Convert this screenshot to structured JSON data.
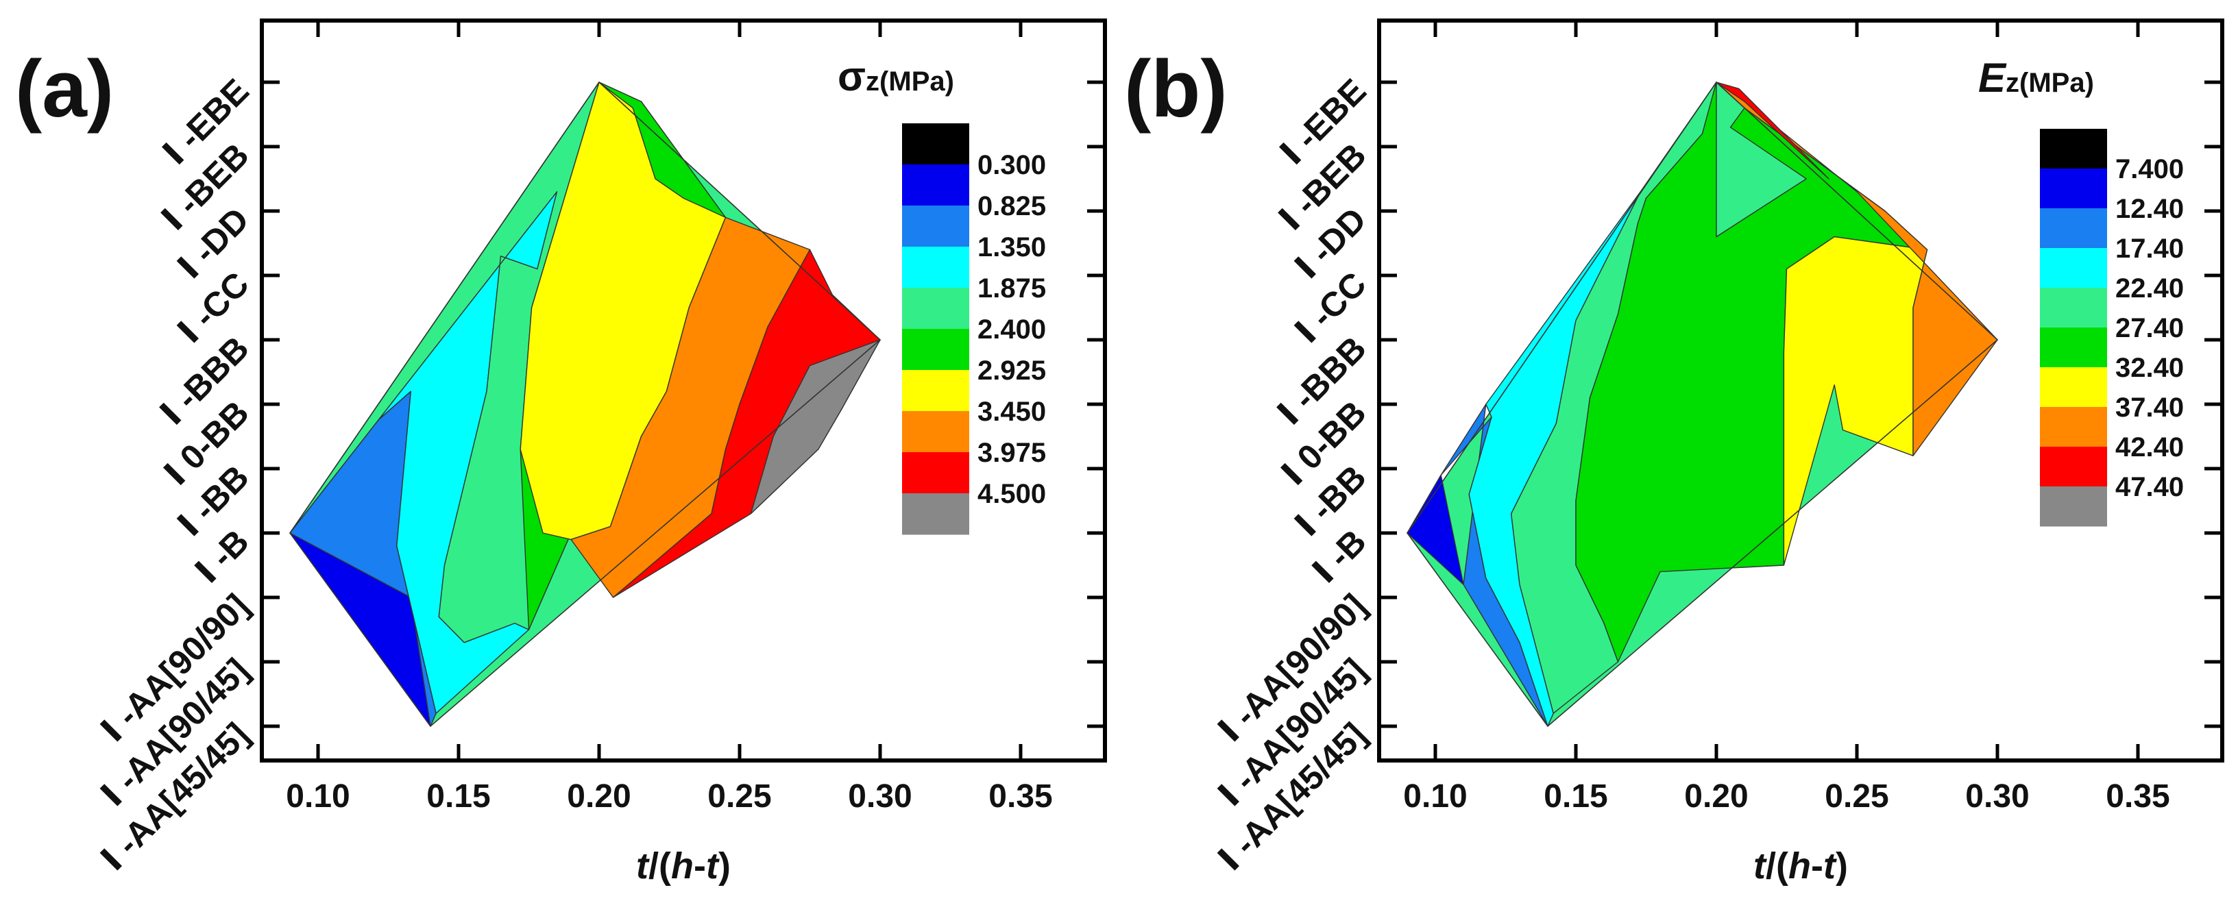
{
  "chart_data": [
    {
      "panel_label": "(a)",
      "type": "heatmap",
      "subtype": "filled-contour",
      "xlabel_parts": [
        "t",
        "/(",
        "h",
        "-",
        "t",
        ")"
      ],
      "ylabel": "",
      "xlim": [
        0.08,
        0.38
      ],
      "x_ticks": [
        "0.10",
        "0.15",
        "0.20",
        "0.25",
        "0.30",
        "0.35"
      ],
      "x_tick_values": [
        0.1,
        0.15,
        0.2,
        0.25,
        0.3,
        0.35
      ],
      "y_categories": [
        "Ⅰ-AA[45/45]",
        "Ⅰ-AA[90/45]",
        "Ⅰ-AA[90/90]",
        "Ⅰ-B",
        "Ⅰ-BB",
        "Ⅰ0-BB",
        "Ⅰ-BBB",
        "Ⅰ-CC",
        "Ⅰ-DD",
        "Ⅰ-BEB",
        "Ⅰ-EBE"
      ],
      "y_tick_texts": [
        "Ⅰ -AA[45/45]",
        "Ⅰ -AA[90/45]",
        "Ⅰ -AA[90/90]",
        "Ⅰ -B",
        "Ⅰ -BB",
        "Ⅰ 0-BB",
        "Ⅰ -BBB",
        "Ⅰ -CC",
        "Ⅰ -DD",
        "Ⅰ -BEB",
        "Ⅰ -EBE"
      ],
      "colorbar_title": {
        "symbol": "σ",
        "subscript": "z",
        "unit": "(MPa)"
      },
      "colorbar_levels": [
        "0.300",
        "0.825",
        "1.350",
        "1.875",
        "2.400",
        "2.925",
        "3.450",
        "3.975",
        "4.500"
      ],
      "band_colors": [
        "#000000",
        "#0000ee",
        "#1a7ff0",
        "#00ffff",
        "#33ee88",
        "#00dd00",
        "#ffff00",
        "#ff8800",
        "#ff0000",
        "#888888"
      ],
      "data_domain": [
        [
          0.14,
          0
        ],
        [
          0.09,
          3
        ],
        [
          0.2,
          10
        ],
        [
          0.3,
          6
        ],
        [
          0.14,
          0
        ]
      ],
      "contour_regions": [
        {
          "level_index": 1,
          "polygon": [
            [
              0.09,
              3
            ],
            [
              0.133,
              2
            ],
            [
              0.14,
              0
            ],
            [
              0.09,
              3
            ]
          ]
        },
        {
          "level_index": 2,
          "polygon": [
            [
              0.09,
              3
            ],
            [
              0.12,
              4.7
            ],
            [
              0.133,
              5.2
            ],
            [
              0.128,
              2.8
            ],
            [
              0.142,
              0.2
            ],
            [
              0.14,
              0
            ],
            [
              0.133,
              2
            ],
            [
              0.09,
              3
            ]
          ]
        },
        {
          "level_index": 3,
          "polygon": [
            [
              0.09,
              3
            ],
            [
              0.185,
              8.3
            ],
            [
              0.178,
              7.1
            ],
            [
              0.165,
              7.3
            ],
            [
              0.16,
              5.2
            ],
            [
              0.145,
              2.5
            ],
            [
              0.143,
              1.7
            ],
            [
              0.152,
              1.3
            ],
            [
              0.17,
              1.6
            ],
            [
              0.175,
              1.5
            ],
            [
              0.142,
              0.2
            ],
            [
              0.128,
              2.8
            ],
            [
              0.133,
              5.2
            ],
            [
              0.12,
              4.7
            ],
            [
              0.09,
              3
            ]
          ]
        },
        {
          "level_index": 4,
          "polygon": [
            [
              0.09,
              3
            ],
            [
              0.2,
              10
            ],
            [
              0.215,
              9.7
            ],
            [
              0.245,
              7.9
            ],
            [
              0.225,
              8.2
            ],
            [
              0.215,
              6.2
            ],
            [
              0.208,
              5.6
            ],
            [
              0.198,
              4.7
            ],
            [
              0.19,
              3
            ],
            [
              0.175,
              1.5
            ],
            [
              0.17,
              1.6
            ],
            [
              0.152,
              1.3
            ],
            [
              0.143,
              1.7
            ],
            [
              0.145,
              2.5
            ],
            [
              0.16,
              5.2
            ],
            [
              0.165,
              7.3
            ],
            [
              0.178,
              7.1
            ],
            [
              0.185,
              8.3
            ],
            [
              0.09,
              3
            ]
          ]
        },
        {
          "level_index": 5,
          "polygon": [
            [
              0.175,
              1.5
            ],
            [
              0.19,
              3
            ],
            [
              0.198,
              4.7
            ],
            [
              0.208,
              5.6
            ],
            [
              0.215,
              6.2
            ],
            [
              0.225,
              8.2
            ],
            [
              0.245,
              7.9
            ],
            [
              0.215,
              9.7
            ],
            [
              0.2,
              10
            ],
            [
              0.176,
              6.5
            ],
            [
              0.172,
              4.3
            ],
            [
              0.175,
              1.5
            ]
          ]
        },
        {
          "level_index": 6,
          "polygon": [
            [
              0.176,
              6.5
            ],
            [
              0.2,
              10
            ],
            [
              0.212,
              9.6
            ],
            [
              0.22,
              8.5
            ],
            [
              0.23,
              8.2
            ],
            [
              0.245,
              7.9
            ],
            [
              0.232,
              6.5
            ],
            [
              0.224,
              5.2
            ],
            [
              0.215,
              4.5
            ],
            [
              0.204,
              3.1
            ],
            [
              0.19,
              2.9
            ],
            [
              0.18,
              3
            ],
            [
              0.172,
              4.3
            ],
            [
              0.176,
              6.5
            ]
          ]
        },
        {
          "level_index": 7,
          "polygon": [
            [
              0.19,
              2.9
            ],
            [
              0.204,
              3.1
            ],
            [
              0.215,
              4.5
            ],
            [
              0.224,
              5.2
            ],
            [
              0.232,
              6.5
            ],
            [
              0.245,
              7.9
            ],
            [
              0.275,
              7.4
            ],
            [
              0.26,
              6.2
            ],
            [
              0.25,
              5
            ],
            [
              0.245,
              4.3
            ],
            [
              0.24,
              3.3
            ],
            [
              0.205,
              2
            ],
            [
              0.19,
              2.9
            ]
          ]
        },
        {
          "level_index": 8,
          "polygon": [
            [
              0.205,
              2
            ],
            [
              0.24,
              3.3
            ],
            [
              0.245,
              4.3
            ],
            [
              0.25,
              5
            ],
            [
              0.26,
              6.2
            ],
            [
              0.275,
              7.4
            ],
            [
              0.283,
              6.7
            ],
            [
              0.3,
              6
            ],
            [
              0.286,
              4.9
            ],
            [
              0.278,
              4.3
            ],
            [
              0.254,
              3.3
            ],
            [
              0.205,
              2
            ]
          ]
        },
        {
          "level_index": 9,
          "polygon": [
            [
              0.254,
              3.3
            ],
            [
              0.278,
              4.3
            ],
            [
              0.286,
              4.9
            ],
            [
              0.3,
              6
            ],
            [
              0.275,
              5.6
            ],
            [
              0.262,
              4.5
            ],
            [
              0.254,
              3.3
            ]
          ]
        }
      ]
    },
    {
      "panel_label": "(b)",
      "type": "heatmap",
      "subtype": "filled-contour",
      "xlabel_parts": [
        "t",
        "/(",
        "h",
        "-",
        "t",
        ")"
      ],
      "ylabel": "",
      "xlim": [
        0.08,
        0.38
      ],
      "x_ticks": [
        "0.10",
        "0.15",
        "0.20",
        "0.25",
        "0.30",
        "0.35"
      ],
      "x_tick_values": [
        0.1,
        0.15,
        0.2,
        0.25,
        0.3,
        0.35
      ],
      "y_categories": [
        "Ⅰ-AA[45/45]",
        "Ⅰ-AA[90/45]",
        "Ⅰ-AA[90/90]",
        "Ⅰ-B",
        "Ⅰ-BB",
        "Ⅰ0-BB",
        "Ⅰ-BBB",
        "Ⅰ-CC",
        "Ⅰ-DD",
        "Ⅰ-BEB",
        "Ⅰ-EBE"
      ],
      "y_tick_texts": [
        "Ⅰ -AA[45/45]",
        "Ⅰ -AA[90/45]",
        "Ⅰ -AA[90/90]",
        "Ⅰ -B",
        "Ⅰ -BB",
        "Ⅰ 0-BB",
        "Ⅰ -BBB",
        "Ⅰ -CC",
        "Ⅰ -DD",
        "Ⅰ -BEB",
        "Ⅰ -EBE"
      ],
      "colorbar_title": {
        "symbol": "E",
        "subscript": "z",
        "unit": "(MPa)"
      },
      "colorbar_levels": [
        "7.400",
        "12.40",
        "17.40",
        "22.40",
        "27.40",
        "32.40",
        "37.40",
        "42.40",
        "47.40"
      ],
      "band_colors": [
        "#000000",
        "#0000ee",
        "#1a7ff0",
        "#00ffff",
        "#33ee88",
        "#00dd00",
        "#ffff00",
        "#ff8800",
        "#ff0000",
        "#888888"
      ],
      "data_domain": [
        [
          0.14,
          0
        ],
        [
          0.09,
          3
        ],
        [
          0.2,
          10
        ],
        [
          0.3,
          6
        ],
        [
          0.14,
          0
        ]
      ],
      "contour_regions": [
        {
          "level_index": 1,
          "polygon": [
            [
              0.09,
              3
            ],
            [
              0.11,
              2.2
            ],
            [
              0.102,
              3.9
            ],
            [
              0.09,
              3
            ]
          ]
        },
        {
          "level_index": 2,
          "polygon": [
            [
              0.09,
              3
            ],
            [
              0.102,
              3.9
            ],
            [
              0.118,
              5
            ],
            [
              0.11,
              2.2
            ],
            [
              0.14,
              0
            ],
            [
              0.13,
              1.3
            ],
            [
              0.118,
              2.3
            ],
            [
              0.112,
              3.6
            ],
            [
              0.12,
              4.8
            ],
            [
              0.102,
              3.9
            ],
            [
              0.09,
              3
            ]
          ]
        },
        {
          "level_index": 3,
          "polygon": [
            [
              0.118,
              5
            ],
            [
              0.173,
              8.3
            ],
            [
              0.15,
              6.3
            ],
            [
              0.143,
              4.7
            ],
            [
              0.127,
              3.3
            ],
            [
              0.13,
              2.2
            ],
            [
              0.142,
              0.2
            ],
            [
              0.14,
              0
            ],
            [
              0.13,
              1.3
            ],
            [
              0.118,
              2.3
            ],
            [
              0.112,
              3.6
            ],
            [
              0.12,
              4.8
            ],
            [
              0.118,
              5
            ]
          ]
        },
        {
          "level_index": 4,
          "polygon": [
            [
              0.142,
              0.2
            ],
            [
              0.13,
              2.2
            ],
            [
              0.127,
              3.3
            ],
            [
              0.143,
              4.7
            ],
            [
              0.15,
              6.3
            ],
            [
              0.173,
              8.3
            ],
            [
              0.2,
              10
            ],
            [
              0.195,
              9.2
            ],
            [
              0.175,
              8.2
            ],
            [
              0.172,
              7.8
            ],
            [
              0.165,
              6.4
            ],
            [
              0.155,
              5.1
            ],
            [
              0.15,
              3.5
            ],
            [
              0.15,
              2.5
            ],
            [
              0.16,
              1.6
            ],
            [
              0.165,
              1
            ],
            [
              0.142,
              0.2
            ]
          ]
        },
        {
          "level_index": 5,
          "polygon": [
            [
              0.165,
              1
            ],
            [
              0.16,
              1.6
            ],
            [
              0.15,
              2.5
            ],
            [
              0.15,
              3.5
            ],
            [
              0.155,
              5.1
            ],
            [
              0.165,
              6.4
            ],
            [
              0.172,
              7.8
            ],
            [
              0.175,
              8.2
            ],
            [
              0.195,
              9.2
            ],
            [
              0.2,
              10
            ],
            [
              0.2,
              7.6
            ],
            [
              0.232,
              8.5
            ],
            [
              0.205,
              9.3
            ],
            [
              0.21,
              9.6
            ],
            [
              0.26,
              8
            ],
            [
              0.275,
              7.4
            ],
            [
              0.242,
              7.6
            ],
            [
              0.225,
              7.1
            ],
            [
              0.224,
              5.8
            ],
            [
              0.224,
              2.5
            ],
            [
              0.18,
              2.4
            ],
            [
              0.165,
              1
            ]
          ]
        },
        {
          "level_index": 6,
          "polygon": [
            [
              0.224,
              2.5
            ],
            [
              0.224,
              5.8
            ],
            [
              0.225,
              7.1
            ],
            [
              0.242,
              7.6
            ],
            [
              0.275,
              7.4
            ],
            [
              0.27,
              6.5
            ],
            [
              0.27,
              4.2
            ],
            [
              0.245,
              4.6
            ],
            [
              0.242,
              5.3
            ],
            [
              0.224,
              2.5
            ]
          ]
        },
        {
          "level_index": 7,
          "polygon": [
            [
              0.2,
              10
            ],
            [
              0.21,
              9.6
            ],
            [
              0.26,
              8
            ],
            [
              0.275,
              7.4
            ],
            [
              0.27,
              6.5
            ],
            [
              0.27,
              4.2
            ],
            [
              0.3,
              6
            ],
            [
              0.25,
              8.3
            ],
            [
              0.21,
              9.7
            ],
            [
              0.2,
              10
            ]
          ]
        },
        {
          "level_index": 8,
          "polygon": [
            [
              0.2,
              10
            ],
            [
              0.208,
              9.9
            ],
            [
              0.24,
              8.5
            ],
            [
              0.21,
              9.7
            ],
            [
              0.2,
              10
            ]
          ]
        }
      ]
    }
  ]
}
